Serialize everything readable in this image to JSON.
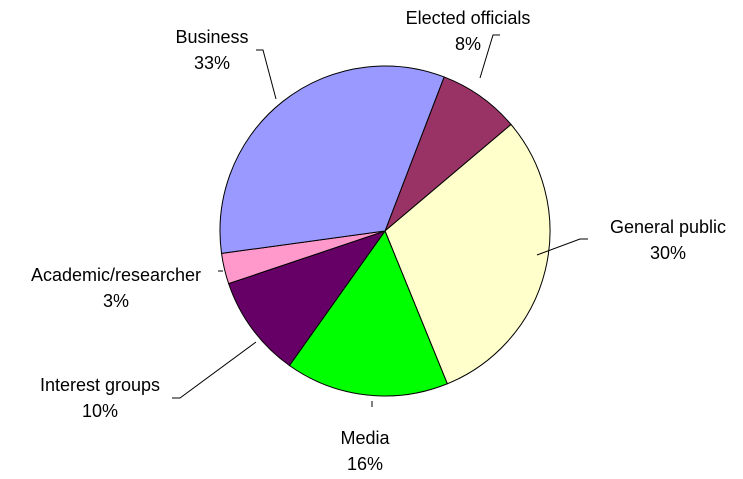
{
  "chart_data": {
    "type": "pie",
    "title": "",
    "slices": [
      {
        "label": "Elected officials",
        "value": 8,
        "percent_label": "8%",
        "color": "#993366"
      },
      {
        "label": "General public",
        "value": 30,
        "percent_label": "30%",
        "color": "#FFFFCC"
      },
      {
        "label": "Media",
        "value": 16,
        "percent_label": "16%",
        "color": "#00FF00"
      },
      {
        "label": "Interest groups",
        "value": 10,
        "percent_label": "10%",
        "color": "#660066"
      },
      {
        "label": "Academic/researcher",
        "value": 3,
        "percent_label": "3%",
        "color": "#FF99CC"
      },
      {
        "label": "Business",
        "value": 33,
        "percent_label": "33%",
        "color": "#9999FF"
      }
    ],
    "start_slice": "Elected officials",
    "direction": "clockwise",
    "legend": "none",
    "label_position": "outside-with-leader-lines"
  }
}
